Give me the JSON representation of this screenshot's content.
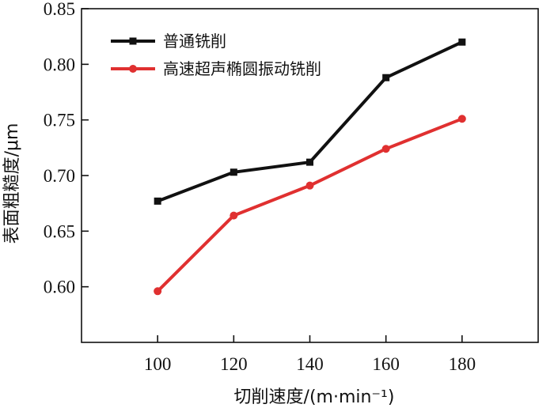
{
  "chart_data": {
    "type": "line",
    "x": [
      100,
      120,
      140,
      160,
      180
    ],
    "series": [
      {
        "name": "普通铣削",
        "color": "#111111",
        "marker": "square",
        "values": [
          0.677,
          0.703,
          0.712,
          0.788,
          0.82
        ]
      },
      {
        "name": "高速超声椭圆振动铣削",
        "color": "#e03030",
        "marker": "circle",
        "values": [
          0.596,
          0.664,
          0.691,
          0.724,
          0.751
        ]
      }
    ],
    "xlabel": "切削速度/(m·min⁻¹)",
    "ylabel": "表面粗糙度/μm",
    "xlim": [
      80,
      200
    ],
    "ylim": [
      0.55,
      0.85
    ],
    "xticks": [
      100,
      120,
      140,
      160,
      180
    ],
    "xtick_labels": [
      "100",
      "120",
      "140",
      "160",
      "180"
    ],
    "yticks": [
      0.6,
      0.65,
      0.7,
      0.75,
      0.8,
      0.85
    ],
    "ytick_labels": [
      "0.60",
      "0.65",
      "0.70",
      "0.75",
      "0.80",
      "0.85"
    ],
    "legend_position": "top-left",
    "grid": false
  }
}
